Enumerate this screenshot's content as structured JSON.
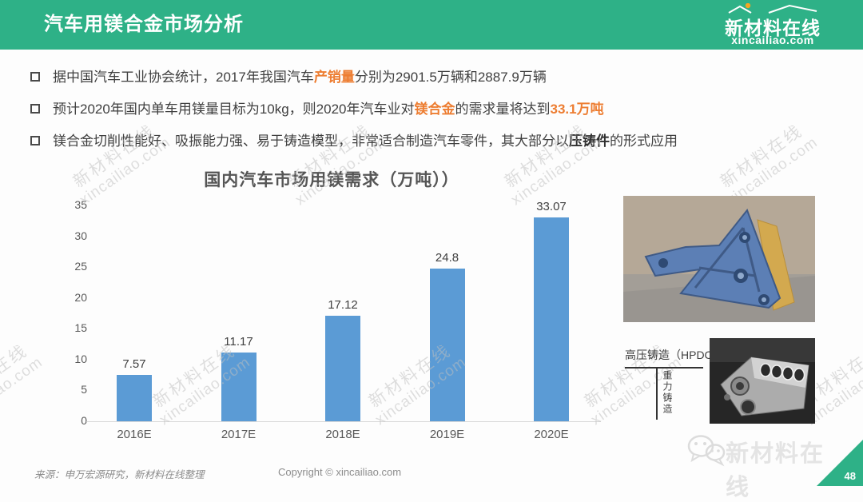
{
  "header": {
    "title": "汽车用镁合金市场分析",
    "logo_cn": "新材料在线",
    "logo_en": "xincailiao.com",
    "bg_color": "#2EB187"
  },
  "bullets": [
    {
      "segments": [
        {
          "text": "据中国汽车工业协会统计，2017年我国汽车"
        },
        {
          "text": "产销量"
        },
        {
          "text": "分别为2901.5万辆和2887.9万辆"
        }
      ]
    },
    {
      "segments": [
        {
          "text": "预计2020年国内单车用镁量目标为10kg，则2020年汽车业对"
        },
        {
          "text": "镁合金"
        },
        {
          "text": "的需求量将达到"
        },
        {
          "text": "33.1万吨"
        }
      ]
    },
    {
      "segments": [
        {
          "text": "镁合金切削性能好、吸振能力强、易于铸造模型，非常适合制造汽车零件，其大部分以"
        },
        {
          "text": "压铸件"
        },
        {
          "text": "的形式应用"
        }
      ]
    }
  ],
  "chart_data": {
    "type": "bar",
    "title": "国内汽车市场用镁需求（万吨））",
    "categories": [
      "2016E",
      "2017E",
      "2018E",
      "2019E",
      "2020E"
    ],
    "values": [
      7.57,
      11.17,
      17.12,
      24.8,
      33.07
    ],
    "value_labels": [
      "7.57",
      "11.17",
      "17.12",
      "24.8",
      "33.07"
    ],
    "xlabel": "",
    "ylabel": "",
    "ylim": [
      0,
      35
    ],
    "yticks": [
      0,
      5,
      10,
      15,
      20,
      25,
      30,
      35
    ],
    "bar_color": "#5B9BD5",
    "grid": false,
    "legend": "none"
  },
  "casting_labels": {
    "hpdc": "高压铸造（HPDC）",
    "gravity": "重力铸造"
  },
  "watermark": {
    "line1": "新材料在线",
    "line2": "xincailiao.com"
  },
  "footer": {
    "source": "来源：申万宏源研究，新材料在线整理",
    "copyright": "Copyright © xincailiao.com",
    "page_number": "48",
    "brand": "新材料在线"
  },
  "colors": {
    "header_green": "#2EB187",
    "accent_orange": "#ED7D31",
    "bar_blue": "#5B9BD5",
    "title_gray": "#555555",
    "body_text": "#3F3F3F"
  }
}
